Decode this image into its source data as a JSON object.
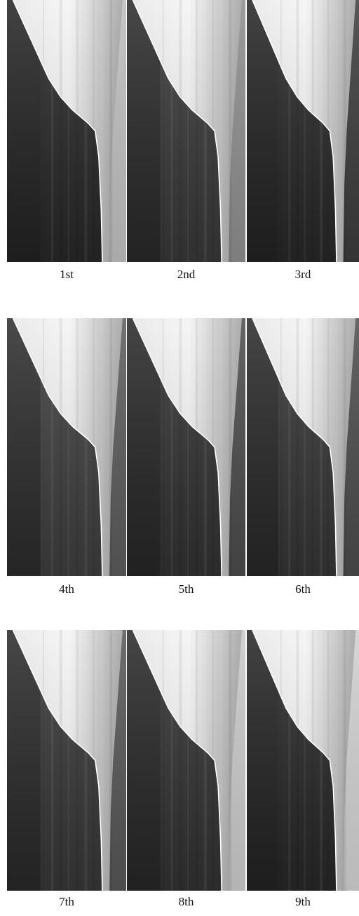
{
  "panels": [
    {
      "label": "1st"
    },
    {
      "label": "2nd"
    },
    {
      "label": "3rd"
    },
    {
      "label": "4th"
    },
    {
      "label": "5th"
    },
    {
      "label": "6th"
    },
    {
      "label": "7th"
    },
    {
      "label": "8th"
    },
    {
      "label": "9th"
    }
  ]
}
